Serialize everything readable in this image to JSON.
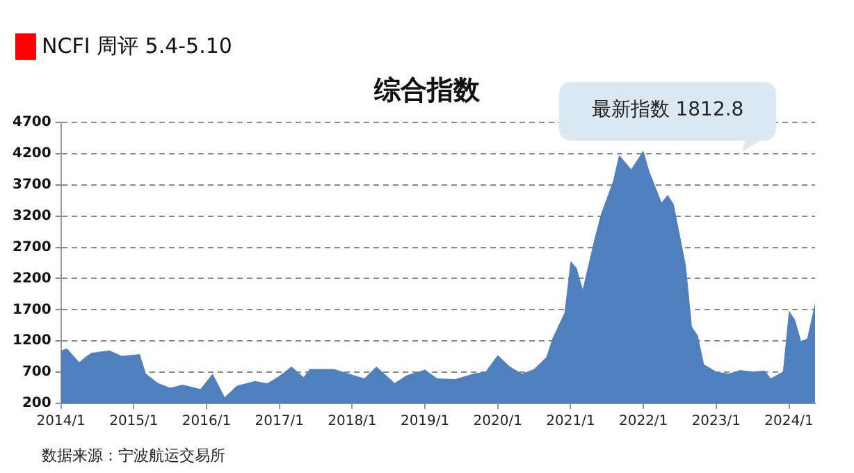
{
  "chart_data": {
    "type": "area",
    "title": "综合指数",
    "annotations": [
      "NCFI 周评 5.4-5.10",
      "最新指数 1812.8",
      "数据来源：宁波航运交易所"
    ],
    "x": [
      "2014-01",
      "2014-02",
      "2014-04",
      "2014-05",
      "2014-06",
      "2014-09",
      "2014-11",
      "2015-01",
      "2015-02",
      "2015-03",
      "2015-05",
      "2015-07",
      "2015-09",
      "2015-12",
      "2016-02",
      "2016-04",
      "2016-06",
      "2016-09",
      "2016-11",
      "2017-01",
      "2017-03",
      "2017-05",
      "2017-06",
      "2017-10",
      "2018-01",
      "2018-03",
      "2018-05",
      "2018-08",
      "2018-10",
      "2019-01",
      "2019-03",
      "2019-06",
      "2019-09",
      "2019-11",
      "2020-01",
      "2020-03",
      "2020-05",
      "2020-07",
      "2020-09",
      "2020-10",
      "2020-12",
      "2021-01",
      "2021-02",
      "2021-03",
      "2021-05",
      "2021-06",
      "2021-08",
      "2021-09",
      "2021-11",
      "2022-01",
      "2022-02",
      "2022-04",
      "2022-05",
      "2022-06",
      "2022-08",
      "2022-09",
      "2022-10",
      "2022-11",
      "2023-01",
      "2023-03",
      "2023-05",
      "2023-07",
      "2023-09",
      "2023-10",
      "2023-12",
      "2024-01",
      "2024-01-15",
      "2024-02",
      "2024-03",
      "2024-04",
      "2024-05-10"
    ],
    "values": [
      1050,
      1080,
      860,
      940,
      1010,
      1050,
      960,
      980,
      990,
      675,
      525,
      450,
      500,
      430,
      675,
      300,
      485,
      560,
      520,
      640,
      790,
      620,
      750,
      750,
      660,
      600,
      790,
      525,
      650,
      740,
      600,
      590,
      675,
      710,
      975,
      790,
      675,
      750,
      940,
      1240,
      1650,
      2480,
      2370,
      2030,
      2860,
      3230,
      3760,
      4180,
      3950,
      4250,
      3910,
      3420,
      3540,
      3390,
      2410,
      1430,
      1280,
      825,
      710,
      675,
      735,
      710,
      725,
      600,
      710,
      1690,
      1615,
      1540,
      1200,
      1240,
      1810
    ],
    "color": "#4f7fbd",
    "xlim": [
      "2014-01-01",
      "2024-05-10"
    ],
    "xticks": [
      {
        "value": "2014-01",
        "label": "2014/1"
      },
      {
        "value": "2015-01",
        "label": "2015/1"
      },
      {
        "value": "2016-01",
        "label": "2016/1"
      },
      {
        "value": "2017-01",
        "label": "2017/1"
      },
      {
        "value": "2018-01",
        "label": "2018/1"
      },
      {
        "value": "2019-01",
        "label": "2019/1"
      },
      {
        "value": "2020-01",
        "label": "2020/1"
      },
      {
        "value": "2021-01",
        "label": "2021/1"
      },
      {
        "value": "2022-01",
        "label": "2022/1"
      },
      {
        "value": "2023-01",
        "label": "2023/1"
      },
      {
        "value": "2024-01",
        "label": "2024/1"
      }
    ],
    "ylim": [
      200,
      4700
    ],
    "yticks": [
      200,
      700,
      1200,
      1700,
      2200,
      2700,
      3200,
      3700,
      4200,
      4700
    ],
    "grid": "y",
    "legend": false
  }
}
